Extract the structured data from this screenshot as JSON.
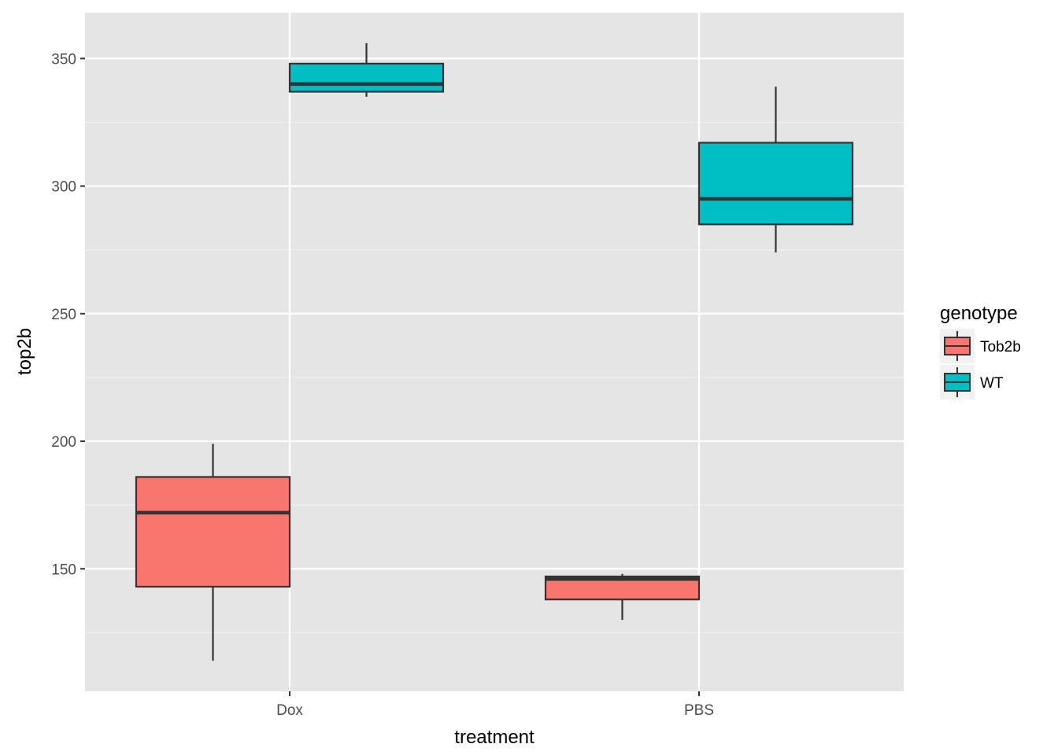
{
  "chart_data": {
    "type": "boxplot",
    "title": "",
    "xlabel": "treatment",
    "ylabel": "top2b",
    "categories": [
      "Dox",
      "PBS"
    ],
    "ylim": [
      102,
      368
    ],
    "yticks": [
      150,
      200,
      250,
      300,
      350
    ],
    "grid": true,
    "legend": {
      "title": "genotype",
      "position": "right"
    },
    "series": [
      {
        "name": "Tob2b",
        "color": "#F8766D",
        "boxes": [
          {
            "category": "Dox",
            "min": 114,
            "q1": 143,
            "median": 172,
            "q3": 186,
            "max": 199
          },
          {
            "category": "PBS",
            "min": 130,
            "q1": 138,
            "median": 146,
            "q3": 147,
            "max": 148
          }
        ]
      },
      {
        "name": "WT",
        "color": "#00BFC4",
        "boxes": [
          {
            "category": "Dox",
            "min": 335,
            "q1": 337,
            "median": 340,
            "q3": 348,
            "max": 356
          },
          {
            "category": "PBS",
            "min": 274,
            "q1": 285,
            "median": 295,
            "q3": 317,
            "max": 339
          }
        ]
      }
    ]
  }
}
